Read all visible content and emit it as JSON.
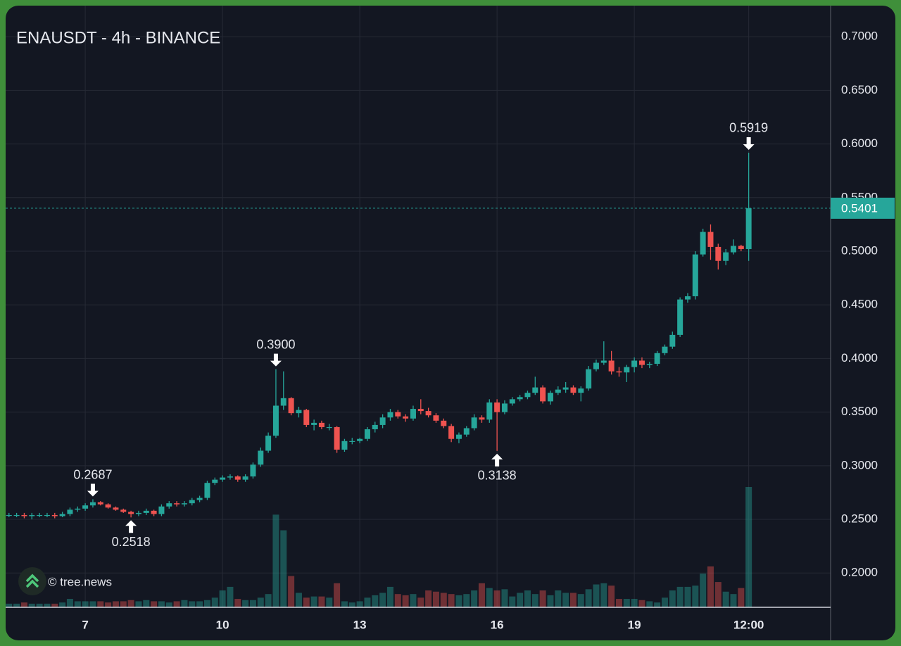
{
  "chart_data": {
    "type": "candlestick",
    "title": "ENAUSDT - 4h - BINANCE",
    "watermark": "© tree.news",
    "up_color": "#26a69a",
    "down_color": "#ef5350",
    "grid": true,
    "x": [
      5.3333,
      5.5,
      5.6667,
      5.8333,
      6,
      6.1667,
      6.3333,
      6.5,
      6.6667,
      6.8333,
      7,
      7.1667,
      7.3333,
      7.5,
      7.6667,
      7.8333,
      8,
      8.1667,
      8.3333,
      8.5,
      8.6667,
      8.8333,
      9,
      9.1667,
      9.3333,
      9.5,
      9.6667,
      9.8333,
      10,
      10.1667,
      10.3333,
      10.5,
      10.6667,
      10.8333,
      11,
      11.1667,
      11.3333,
      11.5,
      11.6667,
      11.8333,
      12,
      12.1667,
      12.3333,
      12.5,
      12.6667,
      12.8333,
      13,
      13.1667,
      13.3333,
      13.5,
      13.6667,
      13.8333,
      14,
      14.1667,
      14.3333,
      14.5,
      14.6667,
      14.8333,
      15,
      15.1667,
      15.3333,
      15.5,
      15.6667,
      15.8333,
      16,
      16.1667,
      16.3333,
      16.5,
      16.6667,
      16.8333,
      17,
      17.1667,
      17.3333,
      17.5,
      17.6667,
      17.8333,
      18,
      18.1667,
      18.3333,
      18.5,
      18.6667,
      18.8333,
      19,
      19.1667,
      19.3333,
      19.5,
      19.6667,
      19.8333,
      20,
      20.1667,
      20.3333,
      20.5,
      20.6667,
      20.8333,
      21,
      21.1667,
      21.3333,
      21.5
    ],
    "open": [
      0.254,
      0.254,
      0.254,
      0.253,
      0.254,
      0.254,
      0.254,
      0.253,
      0.255,
      0.259,
      0.26,
      0.263,
      0.266,
      0.264,
      0.261,
      0.259,
      0.257,
      0.255,
      0.256,
      0.258,
      0.255,
      0.262,
      0.265,
      0.264,
      0.265,
      0.268,
      0.27,
      0.284,
      0.287,
      0.289,
      0.29,
      0.287,
      0.29,
      0.301,
      0.314,
      0.328,
      0.356,
      0.363,
      0.349,
      0.352,
      0.338,
      0.34,
      0.336,
      0.336,
      0.315,
      0.323,
      0.323,
      0.325,
      0.334,
      0.338,
      0.345,
      0.35,
      0.346,
      0.344,
      0.353,
      0.351,
      0.347,
      0.342,
      0.337,
      0.325,
      0.329,
      0.335,
      0.345,
      0.343,
      0.359,
      0.35,
      0.358,
      0.362,
      0.364,
      0.368,
      0.373,
      0.36,
      0.368,
      0.371,
      0.373,
      0.368,
      0.372,
      0.39,
      0.396,
      0.398,
      0.388,
      0.387,
      0.392,
      0.398,
      0.394,
      0.395,
      0.405,
      0.411,
      0.422,
      0.455,
      0.458,
      0.497,
      0.518,
      0.504,
      0.491,
      0.499,
      0.505,
      0.502
    ],
    "high": [
      0.256,
      0.256,
      0.256,
      0.256,
      0.256,
      0.256,
      0.256,
      0.257,
      0.261,
      0.262,
      0.265,
      0.2687,
      0.267,
      0.265,
      0.262,
      0.26,
      0.258,
      0.258,
      0.26,
      0.259,
      0.264,
      0.267,
      0.267,
      0.267,
      0.27,
      0.272,
      0.286,
      0.289,
      0.291,
      0.292,
      0.291,
      0.292,
      0.303,
      0.317,
      0.331,
      0.39,
      0.388,
      0.364,
      0.355,
      0.353,
      0.343,
      0.342,
      0.339,
      0.337,
      0.325,
      0.326,
      0.326,
      0.336,
      0.341,
      0.348,
      0.353,
      0.352,
      0.348,
      0.356,
      0.362,
      0.354,
      0.349,
      0.344,
      0.339,
      0.331,
      0.337,
      0.348,
      0.347,
      0.362,
      0.362,
      0.361,
      0.364,
      0.366,
      0.37,
      0.383,
      0.375,
      0.37,
      0.374,
      0.378,
      0.375,
      0.374,
      0.393,
      0.399,
      0.416,
      0.407,
      0.392,
      0.394,
      0.401,
      0.401,
      0.397,
      0.407,
      0.413,
      0.425,
      0.457,
      0.461,
      0.5,
      0.521,
      0.525,
      0.507,
      0.502,
      0.511,
      0.506,
      0.5919
    ],
    "low": [
      0.252,
      0.252,
      0.251,
      0.25,
      0.252,
      0.252,
      0.251,
      0.252,
      0.253,
      0.257,
      0.258,
      0.261,
      0.263,
      0.26,
      0.258,
      0.256,
      0.2518,
      0.253,
      0.254,
      0.253,
      0.253,
      0.26,
      0.262,
      0.262,
      0.263,
      0.266,
      0.268,
      0.282,
      0.285,
      0.287,
      0.285,
      0.285,
      0.288,
      0.299,
      0.312,
      0.326,
      0.352,
      0.347,
      0.345,
      0.336,
      0.333,
      0.334,
      0.333,
      0.312,
      0.313,
      0.32,
      0.321,
      0.323,
      0.331,
      0.335,
      0.342,
      0.344,
      0.341,
      0.342,
      0.348,
      0.345,
      0.34,
      0.335,
      0.322,
      0.321,
      0.327,
      0.333,
      0.34,
      0.34,
      0.3138,
      0.348,
      0.356,
      0.36,
      0.362,
      0.366,
      0.358,
      0.357,
      0.366,
      0.368,
      0.366,
      0.36,
      0.37,
      0.388,
      0.394,
      0.385,
      0.383,
      0.378,
      0.387,
      0.391,
      0.391,
      0.393,
      0.403,
      0.409,
      0.42,
      0.452,
      0.455,
      0.495,
      0.492,
      0.483,
      0.487,
      0.497,
      0.5,
      0.491
    ],
    "close": [
      0.254,
      0.254,
      0.253,
      0.254,
      0.254,
      0.254,
      0.253,
      0.255,
      0.259,
      0.26,
      0.263,
      0.266,
      0.264,
      0.261,
      0.259,
      0.257,
      0.255,
      0.256,
      0.258,
      0.255,
      0.262,
      0.265,
      0.264,
      0.265,
      0.268,
      0.27,
      0.284,
      0.287,
      0.289,
      0.29,
      0.287,
      0.29,
      0.301,
      0.314,
      0.328,
      0.356,
      0.363,
      0.349,
      0.352,
      0.338,
      0.34,
      0.336,
      0.336,
      0.315,
      0.323,
      0.323,
      0.325,
      0.334,
      0.338,
      0.345,
      0.35,
      0.346,
      0.344,
      0.353,
      0.351,
      0.347,
      0.342,
      0.337,
      0.325,
      0.329,
      0.335,
      0.345,
      0.343,
      0.359,
      0.35,
      0.358,
      0.362,
      0.364,
      0.368,
      0.373,
      0.36,
      0.368,
      0.371,
      0.373,
      0.368,
      0.372,
      0.39,
      0.396,
      0.398,
      0.388,
      0.387,
      0.392,
      0.398,
      0.394,
      0.395,
      0.405,
      0.411,
      0.422,
      0.455,
      0.458,
      0.497,
      0.518,
      0.504,
      0.491,
      0.499,
      0.505,
      0.502,
      0.5401
    ],
    "volume": [
      3,
      3,
      4,
      3,
      3,
      3,
      3,
      4,
      7,
      5,
      5,
      5,
      5,
      4,
      5,
      5,
      6,
      5,
      6,
      5,
      5,
      4,
      5,
      6,
      5,
      5,
      6,
      8,
      14,
      17,
      7,
      6,
      6,
      8,
      11,
      77,
      64,
      26,
      12,
      8,
      9,
      9,
      8,
      20,
      5,
      4,
      5,
      8,
      10,
      12,
      17,
      11,
      10,
      11,
      8,
      14,
      13,
      12,
      11,
      10,
      11,
      14,
      20,
      16,
      14,
      15,
      9,
      12,
      14,
      11,
      14,
      10,
      14,
      12,
      12,
      11,
      15,
      19,
      20,
      18,
      7,
      7,
      7,
      6,
      5,
      4,
      8,
      14,
      17,
      17,
      18,
      28,
      34,
      21,
      13,
      11,
      16,
      100
    ],
    "xlim": [
      5.26,
      23.29
    ],
    "xticks": [
      7,
      10,
      13,
      16,
      19,
      {
        "value": 21.5,
        "label": "12:00"
      }
    ],
    "ylim": [
      0.168,
      0.729
    ],
    "yticks": [
      {
        "value": 0.2,
        "label": "0.2000"
      },
      {
        "value": 0.25,
        "label": "0.2500"
      },
      {
        "value": 0.3,
        "label": "0.3000"
      },
      {
        "value": 0.35,
        "label": "0.3500"
      },
      {
        "value": 0.4,
        "label": "0.4000"
      },
      {
        "value": 0.45,
        "label": "0.4500"
      },
      {
        "value": 0.5,
        "label": "0.5000"
      },
      {
        "value": 0.55,
        "label": "0.5500"
      },
      {
        "value": 0.6,
        "label": "0.6000"
      },
      {
        "value": 0.65,
        "label": "0.6500"
      },
      {
        "value": 0.7,
        "label": "0.7000"
      }
    ],
    "last_price": 0.5401,
    "annotations": [
      {
        "x": 7.1667,
        "value": 0.2687,
        "position": "above"
      },
      {
        "x": 8,
        "value": 0.2518,
        "position": "below"
      },
      {
        "x": 11.1667,
        "value": 0.39,
        "label": "0.3900",
        "position": "above"
      },
      {
        "x": 16,
        "value": 0.3138,
        "position": "below"
      },
      {
        "x": 21.5,
        "value": 0.5919,
        "position": "above"
      }
    ]
  }
}
